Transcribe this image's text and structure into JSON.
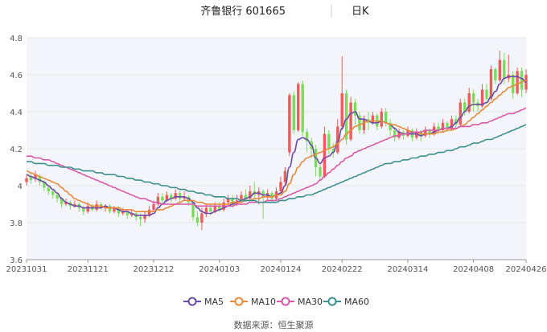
{
  "header": {
    "title": "齐鲁银行 601665",
    "period": "日K"
  },
  "legend": [
    {
      "name": "MA5",
      "color": "#6a4aa8"
    },
    {
      "name": "MA10",
      "color": "#e8893a"
    },
    {
      "name": "MA30",
      "color": "#d957a8"
    },
    {
      "name": "MA60",
      "color": "#3a8f8f"
    }
  ],
  "source": "数据来源：恒生聚源",
  "colors": {
    "up": "#f05a5a",
    "down": "#7bdc5a",
    "grid": "#e6e6e6",
    "plot_bg": "#f4f5fb",
    "axis_text": "#555555"
  },
  "chart_data": {
    "type": "candlestick",
    "ylim": [
      3.6,
      4.8
    ],
    "yticks": [
      "3.6",
      "3.8",
      "4",
      "4.2",
      "4.4",
      "4.6",
      "4.8"
    ],
    "xticks": [
      "20231031",
      "20231121",
      "20231212",
      "20240103",
      "20240124",
      "20240222",
      "20240314",
      "20240408",
      "20240426"
    ],
    "tick_index": [
      0,
      14,
      29,
      44,
      58,
      72,
      87,
      102,
      114
    ],
    "candles": [
      [
        4.02,
        4.04,
        4.06,
        4.0
      ],
      [
        4.05,
        4.03,
        4.07,
        4.01
      ],
      [
        4.04,
        4.06,
        4.08,
        4.02
      ],
      [
        4.05,
        4.02,
        4.06,
        4.0
      ],
      [
        4.02,
        3.99,
        4.03,
        3.97
      ],
      [
        3.99,
        3.97,
        4.0,
        3.95
      ],
      [
        3.97,
        3.95,
        3.98,
        3.93
      ],
      [
        3.95,
        3.93,
        3.96,
        3.91
      ],
      [
        3.93,
        3.9,
        3.94,
        3.88
      ],
      [
        3.9,
        3.91,
        3.93,
        3.89
      ],
      [
        3.91,
        3.89,
        3.92,
        3.87
      ],
      [
        3.89,
        3.9,
        3.92,
        3.88
      ],
      [
        3.9,
        3.88,
        3.91,
        3.86
      ],
      [
        3.88,
        3.86,
        3.89,
        3.84
      ],
      [
        3.86,
        3.89,
        3.91,
        3.85
      ],
      [
        3.89,
        3.87,
        3.9,
        3.86
      ],
      [
        3.87,
        3.9,
        3.92,
        3.86
      ],
      [
        3.9,
        3.88,
        3.91,
        3.87
      ],
      [
        3.88,
        3.89,
        3.9,
        3.86
      ],
      [
        3.89,
        3.86,
        3.9,
        3.85
      ],
      [
        3.86,
        3.88,
        3.89,
        3.85
      ],
      [
        3.88,
        3.85,
        3.89,
        3.83
      ],
      [
        3.85,
        3.86,
        3.88,
        3.84
      ],
      [
        3.86,
        3.84,
        3.87,
        3.82
      ],
      [
        3.84,
        3.85,
        3.87,
        3.83
      ],
      [
        3.85,
        3.83,
        3.86,
        3.81
      ],
      [
        3.83,
        3.82,
        3.85,
        3.78
      ],
      [
        3.82,
        3.84,
        3.86,
        3.8
      ],
      [
        3.84,
        3.87,
        3.89,
        3.83
      ],
      [
        3.87,
        3.9,
        3.92,
        3.86
      ],
      [
        3.9,
        3.94,
        3.96,
        3.89
      ],
      [
        3.94,
        3.92,
        3.96,
        3.9
      ],
      [
        3.92,
        3.95,
        3.97,
        3.91
      ],
      [
        3.95,
        3.93,
        3.96,
        3.91
      ],
      [
        3.93,
        3.96,
        3.98,
        3.92
      ],
      [
        3.96,
        3.93,
        3.97,
        3.91
      ],
      [
        3.93,
        3.94,
        3.97,
        3.92
      ],
      [
        3.94,
        3.91,
        3.95,
        3.89
      ],
      [
        3.91,
        3.83,
        3.92,
        3.81
      ],
      [
        3.83,
        3.8,
        3.86,
        3.78
      ],
      [
        3.8,
        3.85,
        3.88,
        3.76
      ],
      [
        3.85,
        3.88,
        3.9,
        3.83
      ],
      [
        3.88,
        3.86,
        3.9,
        3.84
      ],
      [
        3.86,
        3.89,
        3.91,
        3.85
      ],
      [
        3.89,
        3.87,
        3.91,
        3.86
      ],
      [
        3.87,
        3.91,
        3.93,
        3.86
      ],
      [
        3.91,
        3.93,
        3.95,
        3.89
      ],
      [
        3.93,
        3.9,
        3.95,
        3.88
      ],
      [
        3.9,
        3.92,
        3.95,
        3.89
      ],
      [
        3.92,
        3.95,
        3.97,
        3.91
      ],
      [
        3.95,
        3.93,
        3.98,
        3.91
      ],
      [
        3.93,
        3.97,
        4.0,
        3.92
      ],
      [
        3.97,
        3.95,
        4.02,
        3.93
      ],
      [
        3.95,
        3.97,
        3.99,
        3.9
      ],
      [
        3.97,
        3.94,
        3.98,
        3.82
      ],
      [
        3.94,
        3.96,
        3.98,
        3.92
      ],
      [
        3.96,
        3.93,
        3.97,
        3.91
      ],
      [
        3.93,
        3.97,
        3.99,
        3.92
      ],
      [
        3.97,
        4.02,
        4.05,
        3.96
      ],
      [
        4.02,
        4.08,
        4.1,
        4.0
      ],
      [
        4.18,
        4.49,
        4.5,
        4.16
      ],
      [
        4.49,
        4.3,
        4.51,
        4.28
      ],
      [
        4.3,
        4.55,
        4.56,
        4.29
      ],
      [
        4.55,
        4.29,
        4.57,
        4.27
      ],
      [
        4.29,
        4.24,
        4.31,
        4.18
      ],
      [
        4.24,
        4.2,
        4.26,
        4.15
      ],
      [
        4.2,
        4.1,
        4.22,
        4.05
      ],
      [
        4.1,
        4.05,
        4.12,
        4.03
      ],
      [
        4.05,
        4.28,
        4.32,
        4.04
      ],
      [
        4.28,
        4.2,
        4.3,
        4.17
      ],
      [
        4.2,
        4.18,
        4.23,
        4.15
      ],
      [
        4.18,
        4.32,
        4.36,
        4.17
      ],
      [
        4.32,
        4.5,
        4.7,
        4.3
      ],
      [
        4.5,
        4.25,
        4.52,
        4.22
      ],
      [
        4.25,
        4.45,
        4.48,
        4.24
      ],
      [
        4.45,
        4.38,
        4.47,
        4.33
      ],
      [
        4.38,
        4.3,
        4.4,
        4.28
      ],
      [
        4.3,
        4.36,
        4.38,
        4.28
      ],
      [
        4.36,
        4.34,
        4.4,
        4.3
      ],
      [
        4.34,
        4.38,
        4.4,
        4.33
      ],
      [
        4.38,
        4.32,
        4.39,
        4.3
      ],
      [
        4.32,
        4.4,
        4.42,
        4.31
      ],
      [
        4.4,
        4.34,
        4.42,
        4.32
      ],
      [
        4.34,
        4.3,
        4.36,
        4.27
      ],
      [
        4.3,
        4.26,
        4.32,
        4.24
      ],
      [
        4.26,
        4.29,
        4.31,
        4.25
      ],
      [
        4.29,
        4.27,
        4.3,
        4.25
      ],
      [
        4.27,
        4.3,
        4.32,
        4.26
      ],
      [
        4.3,
        4.26,
        4.31,
        4.24
      ],
      [
        4.26,
        4.29,
        4.31,
        4.25
      ],
      [
        4.29,
        4.27,
        4.3,
        4.24
      ],
      [
        4.27,
        4.3,
        4.32,
        4.26
      ],
      [
        4.3,
        4.28,
        4.31,
        4.26
      ],
      [
        4.28,
        4.32,
        4.34,
        4.27
      ],
      [
        4.32,
        4.3,
        4.34,
        4.28
      ],
      [
        4.3,
        4.34,
        4.36,
        4.29
      ],
      [
        4.34,
        4.31,
        4.35,
        4.29
      ],
      [
        4.31,
        4.36,
        4.38,
        4.3
      ],
      [
        4.36,
        4.33,
        4.38,
        4.3
      ],
      [
        4.33,
        4.45,
        4.47,
        4.32
      ],
      [
        4.45,
        4.4,
        4.47,
        4.38
      ],
      [
        4.4,
        4.5,
        4.53,
        4.39
      ],
      [
        4.5,
        4.45,
        4.52,
        4.4
      ],
      [
        4.45,
        4.43,
        4.47,
        4.4
      ],
      [
        4.43,
        4.52,
        4.55,
        4.42
      ],
      [
        4.52,
        4.47,
        4.55,
        4.44
      ],
      [
        4.47,
        4.63,
        4.65,
        4.46
      ],
      [
        4.63,
        4.57,
        4.64,
        4.55
      ],
      [
        4.57,
        4.68,
        4.73,
        4.56
      ],
      [
        4.68,
        4.58,
        4.72,
        4.55
      ],
      [
        4.58,
        4.6,
        4.71,
        4.56
      ],
      [
        4.6,
        4.5,
        4.62,
        4.47
      ],
      [
        4.5,
        4.62,
        4.64,
        4.49
      ],
      [
        4.62,
        4.52,
        4.64,
        4.48
      ],
      [
        4.52,
        4.6,
        4.63,
        4.5
      ]
    ],
    "ma": {
      "MA5": [
        4.06,
        4.05,
        4.04,
        4.03,
        4.02,
        4.0,
        3.98,
        3.96,
        3.93,
        3.91,
        3.9,
        3.89,
        3.89,
        3.88,
        3.88,
        3.88,
        3.88,
        3.88,
        3.89,
        3.88,
        3.88,
        3.87,
        3.86,
        3.86,
        3.85,
        3.84,
        3.84,
        3.84,
        3.84,
        3.85,
        3.88,
        3.9,
        3.92,
        3.93,
        3.94,
        3.94,
        3.94,
        3.93,
        3.91,
        3.88,
        3.86,
        3.85,
        3.85,
        3.86,
        3.87,
        3.88,
        3.89,
        3.9,
        3.91,
        3.92,
        3.93,
        3.94,
        3.96,
        3.96,
        3.95,
        3.95,
        3.94,
        3.95,
        3.96,
        4.0,
        4.1,
        4.18,
        4.25,
        4.26,
        4.25,
        4.22,
        4.15,
        4.12,
        4.15,
        4.16,
        4.18,
        4.24,
        4.31,
        4.36,
        4.39,
        4.4,
        4.36,
        4.36,
        4.35,
        4.34,
        4.34,
        4.35,
        4.34,
        4.33,
        4.31,
        4.29,
        4.28,
        4.28,
        4.28,
        4.28,
        4.27,
        4.28,
        4.28,
        4.29,
        4.3,
        4.31,
        4.31,
        4.32,
        4.34,
        4.37,
        4.4,
        4.43,
        4.44,
        4.44,
        4.44,
        4.45,
        4.48,
        4.51,
        4.55,
        4.58,
        4.59,
        4.59,
        4.59,
        4.58,
        4.56
      ],
      "MA10": [
        4.08,
        4.07,
        4.06,
        4.05,
        4.04,
        4.03,
        4.02,
        4.01,
        3.99,
        3.97,
        3.95,
        3.93,
        3.92,
        3.91,
        3.9,
        3.89,
        3.89,
        3.89,
        3.88,
        3.88,
        3.88,
        3.88,
        3.87,
        3.87,
        3.87,
        3.86,
        3.86,
        3.86,
        3.86,
        3.86,
        3.87,
        3.87,
        3.88,
        3.89,
        3.9,
        3.91,
        3.92,
        3.92,
        3.92,
        3.91,
        3.91,
        3.9,
        3.9,
        3.9,
        3.9,
        3.9,
        3.9,
        3.91,
        3.91,
        3.91,
        3.92,
        3.92,
        3.93,
        3.93,
        3.94,
        3.94,
        3.94,
        3.95,
        3.95,
        3.97,
        4.01,
        4.06,
        4.1,
        4.13,
        4.15,
        4.16,
        4.17,
        4.18,
        4.19,
        4.2,
        4.21,
        4.23,
        4.25,
        4.28,
        4.3,
        4.32,
        4.33,
        4.34,
        4.35,
        4.35,
        4.35,
        4.35,
        4.34,
        4.33,
        4.33,
        4.32,
        4.31,
        4.3,
        4.29,
        4.29,
        4.28,
        4.28,
        4.28,
        4.28,
        4.29,
        4.29,
        4.3,
        4.3,
        4.31,
        4.32,
        4.33,
        4.35,
        4.37,
        4.39,
        4.41,
        4.43,
        4.45,
        4.47,
        4.49,
        4.51,
        4.53,
        4.54,
        4.55,
        4.56,
        4.57
      ],
      "MA30": [
        4.16,
        4.16,
        4.15,
        4.15,
        4.14,
        4.14,
        4.13,
        4.12,
        4.11,
        4.1,
        4.09,
        4.08,
        4.07,
        4.06,
        4.05,
        4.04,
        4.03,
        4.02,
        4.01,
        4.0,
        3.99,
        3.98,
        3.97,
        3.96,
        3.95,
        3.94,
        3.93,
        3.93,
        3.92,
        3.91,
        3.91,
        3.9,
        3.9,
        3.9,
        3.9,
        3.9,
        3.9,
        3.9,
        3.9,
        3.89,
        3.89,
        3.89,
        3.89,
        3.89,
        3.89,
        3.89,
        3.89,
        3.89,
        3.9,
        3.9,
        3.9,
        3.91,
        3.91,
        3.91,
        3.91,
        3.92,
        3.92,
        3.92,
        3.93,
        3.94,
        3.95,
        3.96,
        3.97,
        3.98,
        3.99,
        4.0,
        4.01,
        4.03,
        4.05,
        4.07,
        4.09,
        4.11,
        4.13,
        4.15,
        4.16,
        4.18,
        4.19,
        4.2,
        4.21,
        4.22,
        4.23,
        4.24,
        4.25,
        4.26,
        4.27,
        4.27,
        4.28,
        4.28,
        4.29,
        4.29,
        4.29,
        4.3,
        4.3,
        4.3,
        4.3,
        4.31,
        4.31,
        4.31,
        4.31,
        4.32,
        4.32,
        4.32,
        4.33,
        4.33,
        4.34,
        4.34,
        4.35,
        4.36,
        4.37,
        4.38,
        4.39,
        4.39,
        4.4,
        4.41,
        4.42
      ],
      "MA60": [
        4.13,
        4.13,
        4.12,
        4.12,
        4.12,
        4.11,
        4.11,
        4.11,
        4.1,
        4.1,
        4.1,
        4.09,
        4.09,
        4.08,
        4.08,
        4.08,
        4.07,
        4.07,
        4.06,
        4.06,
        4.06,
        4.05,
        4.05,
        4.04,
        4.04,
        4.03,
        4.03,
        4.02,
        4.02,
        4.01,
        4.01,
        4.0,
        4.0,
        3.99,
        3.99,
        3.98,
        3.98,
        3.97,
        3.97,
        3.96,
        3.96,
        3.95,
        3.95,
        3.94,
        3.94,
        3.94,
        3.93,
        3.93,
        3.93,
        3.92,
        3.92,
        3.92,
        3.92,
        3.91,
        3.91,
        3.91,
        3.91,
        3.91,
        3.92,
        3.92,
        3.93,
        3.93,
        3.94,
        3.94,
        3.95,
        3.95,
        3.96,
        3.97,
        3.98,
        3.99,
        4.0,
        4.01,
        4.02,
        4.03,
        4.04,
        4.05,
        4.06,
        4.07,
        4.08,
        4.09,
        4.1,
        4.11,
        4.12,
        4.12,
        4.13,
        4.13,
        4.14,
        4.14,
        4.15,
        4.15,
        4.16,
        4.16,
        4.17,
        4.17,
        4.18,
        4.18,
        4.19,
        4.19,
        4.2,
        4.21,
        4.21,
        4.22,
        4.23,
        4.23,
        4.24,
        4.25,
        4.25,
        4.26,
        4.27,
        4.28,
        4.29,
        4.3,
        4.31,
        4.32,
        4.33
      ]
    }
  }
}
